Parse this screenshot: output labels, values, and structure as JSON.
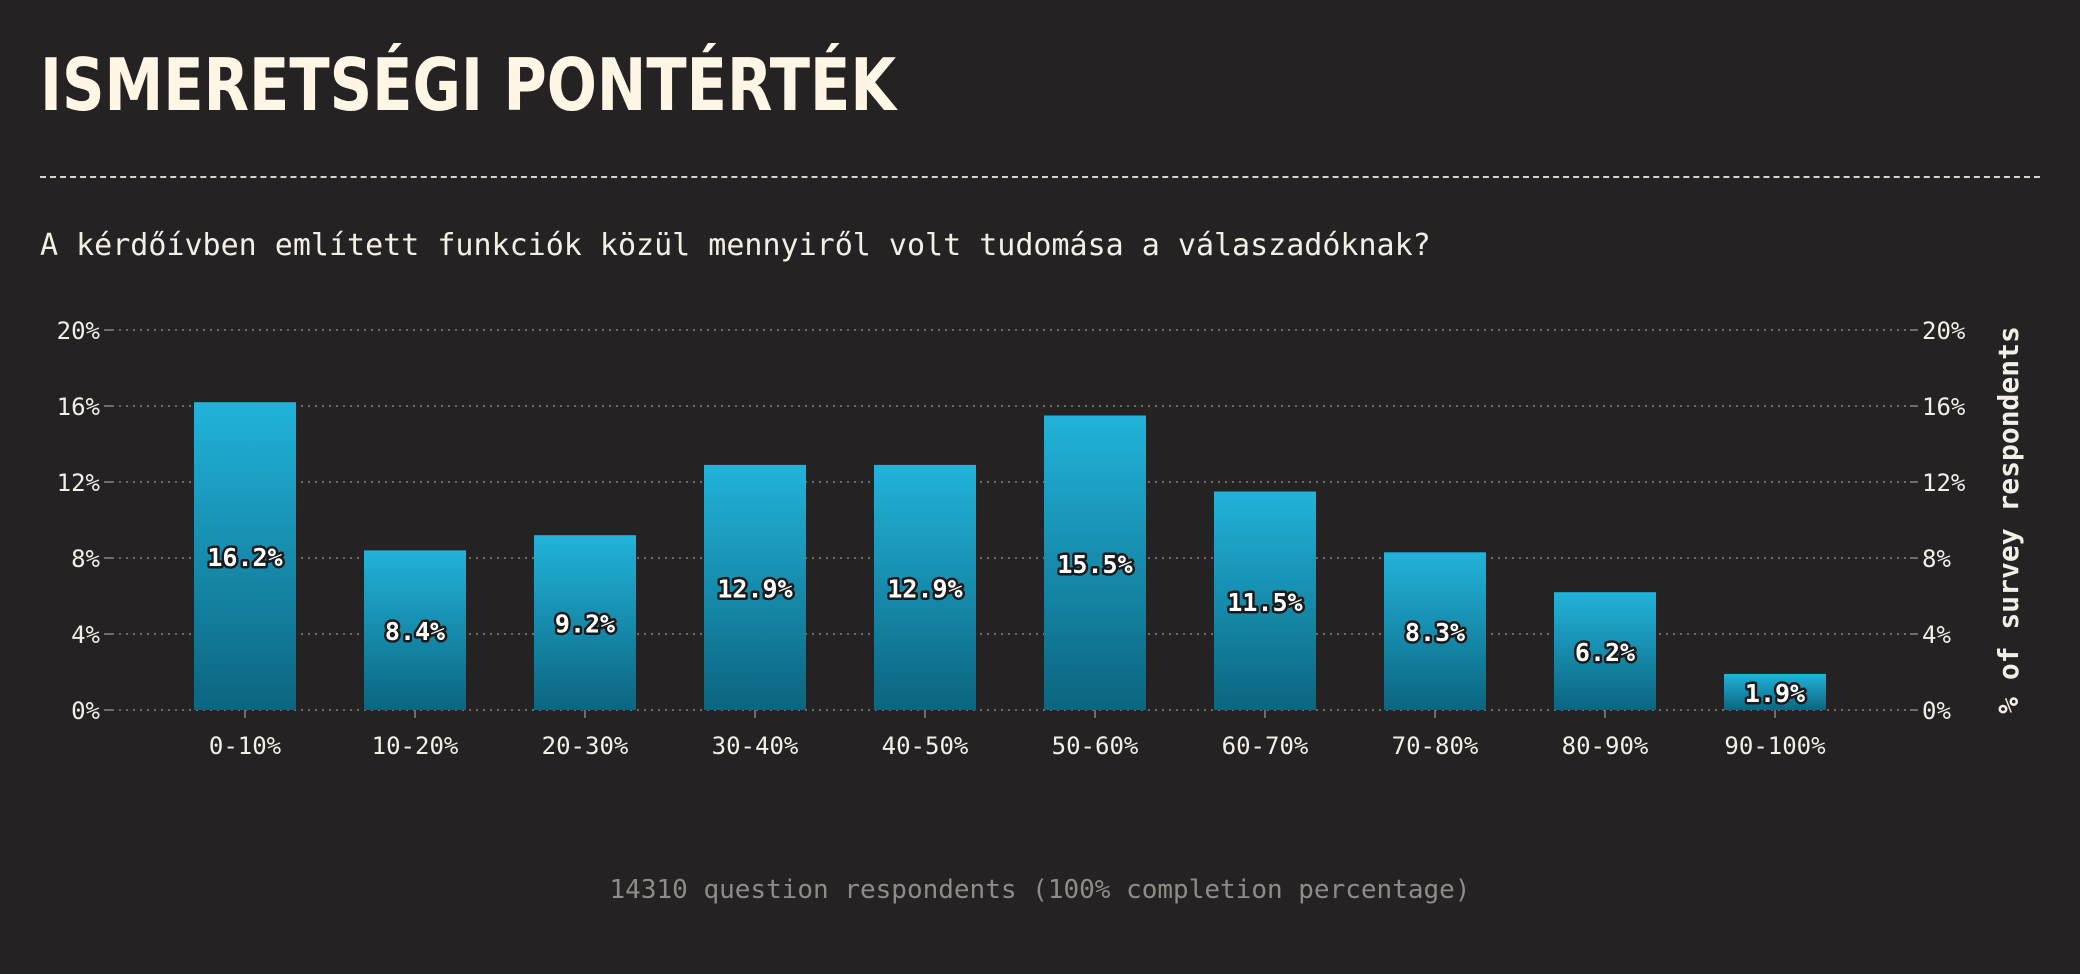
{
  "title": "ISMERETSÉGI PONTÉRTÉK",
  "subtitle": "A kérdőívben említett funkciók közül mennyiről volt tudomása a válaszadóknak?",
  "footnote": "14310 question respondents (100% completion percentage)",
  "colors": {
    "background": "#252223",
    "bar_top": "#22b3da",
    "bar_bottom": "#0b6580",
    "grid": "#8a8580",
    "text": "#f4efe6"
  },
  "chart_data": {
    "type": "bar",
    "categories": [
      "0-10%",
      "10-20%",
      "20-30%",
      "30-40%",
      "40-50%",
      "50-60%",
      "60-70%",
      "70-80%",
      "80-90%",
      "90-100%"
    ],
    "values": [
      16.2,
      8.4,
      9.2,
      12.9,
      12.9,
      15.5,
      11.5,
      8.3,
      6.2,
      1.9
    ],
    "value_labels": [
      "16.2%",
      "8.4%",
      "9.2%",
      "12.9%",
      "12.9%",
      "15.5%",
      "11.5%",
      "8.3%",
      "6.2%",
      "1.9%"
    ],
    "ylim": [
      0,
      20
    ],
    "yticks": [
      0,
      4,
      8,
      12,
      16,
      20
    ],
    "ytick_labels": [
      "0%",
      "4%",
      "8%",
      "12%",
      "16%",
      "20%"
    ],
    "ylabel_right": "% of survey respondents",
    "grid": "horizontal dotted",
    "legend": "none"
  }
}
